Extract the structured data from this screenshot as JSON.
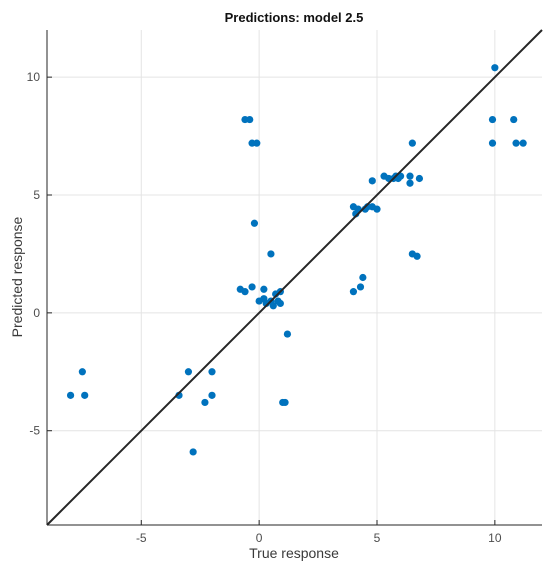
{
  "chart_data": {
    "type": "scatter",
    "title": "Predictions: model 2.5",
    "xlabel": "True response",
    "ylabel": "Predicted response",
    "xlim": [
      -9,
      12
    ],
    "ylim": [
      -9,
      12
    ],
    "xticks": [
      -5,
      0,
      5,
      10
    ],
    "yticks": [
      -5,
      0,
      5,
      10
    ],
    "grid": true,
    "point_color": "#0072BD",
    "line_color": "#262626",
    "reference_line": {
      "from": [
        -9,
        -9
      ],
      "to": [
        12,
        12
      ]
    },
    "points": [
      [
        -8.0,
        -3.5
      ],
      [
        -7.5,
        -2.5
      ],
      [
        -7.4,
        -3.5
      ],
      [
        -3.4,
        -3.5
      ],
      [
        -3.0,
        -2.5
      ],
      [
        -2.8,
        -5.9
      ],
      [
        -2.3,
        -3.8
      ],
      [
        -2.0,
        -3.5
      ],
      [
        -2.0,
        -2.5
      ],
      [
        -0.8,
        1.0
      ],
      [
        -0.6,
        0.9
      ],
      [
        -0.6,
        8.2
      ],
      [
        -0.4,
        8.2
      ],
      [
        -0.3,
        7.2
      ],
      [
        -0.3,
        1.1
      ],
      [
        -0.2,
        3.8
      ],
      [
        -0.1,
        7.2
      ],
      [
        0.0,
        0.5
      ],
      [
        0.2,
        1.0
      ],
      [
        0.2,
        0.6
      ],
      [
        0.3,
        0.4
      ],
      [
        0.5,
        2.5
      ],
      [
        0.5,
        0.5
      ],
      [
        0.6,
        0.3
      ],
      [
        0.7,
        0.8
      ],
      [
        0.8,
        0.5
      ],
      [
        0.9,
        0.9
      ],
      [
        0.9,
        0.4
      ],
      [
        1.0,
        -3.8
      ],
      [
        1.1,
        -3.8
      ],
      [
        1.2,
        -0.9
      ],
      [
        4.0,
        0.9
      ],
      [
        4.0,
        4.5
      ],
      [
        4.1,
        4.2
      ],
      [
        4.2,
        4.4
      ],
      [
        4.3,
        1.1
      ],
      [
        4.4,
        1.5
      ],
      [
        4.5,
        4.4
      ],
      [
        4.6,
        4.5
      ],
      [
        4.8,
        5.6
      ],
      [
        4.8,
        4.5
      ],
      [
        5.0,
        4.4
      ],
      [
        5.3,
        5.8
      ],
      [
        5.5,
        5.7
      ],
      [
        5.7,
        5.7
      ],
      [
        5.8,
        5.8
      ],
      [
        5.9,
        5.7
      ],
      [
        6.0,
        5.8
      ],
      [
        6.4,
        5.8
      ],
      [
        6.4,
        5.5
      ],
      [
        6.5,
        7.2
      ],
      [
        6.5,
        2.5
      ],
      [
        6.7,
        2.4
      ],
      [
        6.8,
        5.7
      ],
      [
        9.9,
        7.2
      ],
      [
        9.9,
        8.2
      ],
      [
        10.0,
        10.4
      ],
      [
        10.8,
        8.2
      ],
      [
        10.9,
        7.2
      ],
      [
        11.2,
        7.2
      ]
    ]
  }
}
